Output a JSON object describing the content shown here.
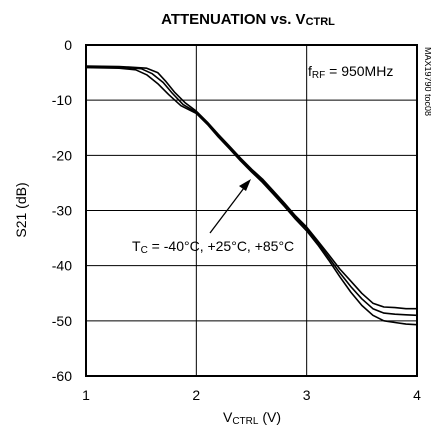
{
  "chart_data": {
    "type": "line",
    "title": {
      "main": "ATTENUATION vs. V",
      "sub": "CTRL"
    },
    "xlabel": {
      "main": "V",
      "sub": "CTRL",
      "unit": " (V)"
    },
    "ylabel": "S21 (dB)",
    "xlim": [
      1,
      4
    ],
    "ylim": [
      -60,
      0
    ],
    "xticks": [
      1,
      2,
      3,
      4
    ],
    "yticks": [
      0,
      -10,
      -20,
      -30,
      -40,
      -50,
      -60
    ],
    "xtick_labels": [
      "1",
      "2",
      "3",
      "4"
    ],
    "ytick_labels": [
      "0",
      "-10",
      "-20",
      "-30",
      "-40",
      "-50",
      "-60"
    ],
    "grid": true,
    "annotations": {
      "condition": {
        "pre": "f",
        "sub": "RF",
        "post": " = 950MHz"
      },
      "temperatures": {
        "pre": "T",
        "sub": "C",
        "post": " = -40°C, +25°C, +85°C"
      },
      "doc_code": "MAX19790 toc08"
    },
    "series": [
      {
        "x": [
          1.0,
          1.3,
          1.55,
          1.65,
          1.72,
          1.8,
          1.9,
          2.0,
          2.1,
          2.2,
          2.3,
          2.4,
          2.5,
          2.6,
          2.7,
          2.8,
          2.9,
          3.0,
          3.1,
          3.2,
          3.3,
          3.4,
          3.5,
          3.6,
          3.7,
          3.8,
          3.9,
          4.0
        ],
        "values": [
          -3.8,
          -3.9,
          -4.2,
          -5.0,
          -6.5,
          -8.5,
          -10.5,
          -12.0,
          -14.0,
          -16.2,
          -18.3,
          -20.5,
          -22.5,
          -24.3,
          -26.5,
          -28.7,
          -31.0,
          -33.0,
          -35.5,
          -38.0,
          -40.6,
          -42.8,
          -45.0,
          -46.8,
          -47.5,
          -47.6,
          -47.8,
          -47.8
        ]
      },
      {
        "x": [
          1.0,
          1.3,
          1.5,
          1.6,
          1.7,
          1.78,
          1.88,
          2.0,
          2.1,
          2.2,
          2.3,
          2.4,
          2.5,
          2.6,
          2.7,
          2.8,
          2.9,
          3.0,
          3.1,
          3.2,
          3.3,
          3.4,
          3.5,
          3.6,
          3.7,
          3.8,
          3.9,
          4.0
        ],
        "values": [
          -3.9,
          -4.0,
          -4.3,
          -5.2,
          -6.8,
          -8.7,
          -10.8,
          -12.2,
          -14.2,
          -16.5,
          -18.5,
          -20.7,
          -22.7,
          -24.6,
          -26.8,
          -29.0,
          -31.3,
          -33.3,
          -35.8,
          -38.5,
          -41.3,
          -43.8,
          -46.0,
          -47.8,
          -48.6,
          -48.8,
          -48.9,
          -49.0
        ]
      },
      {
        "x": [
          1.0,
          1.3,
          1.45,
          1.55,
          1.65,
          1.75,
          1.86,
          2.0,
          2.1,
          2.2,
          2.3,
          2.4,
          2.5,
          2.6,
          2.7,
          2.8,
          2.9,
          3.0,
          3.1,
          3.2,
          3.3,
          3.4,
          3.5,
          3.6,
          3.7,
          3.8,
          3.9,
          4.0
        ],
        "values": [
          -4.1,
          -4.2,
          -4.5,
          -5.4,
          -7.0,
          -9.0,
          -11.0,
          -12.4,
          -14.4,
          -16.7,
          -18.8,
          -21.0,
          -23.0,
          -24.9,
          -27.1,
          -29.3,
          -31.6,
          -33.7,
          -36.2,
          -39.0,
          -42.0,
          -44.8,
          -47.2,
          -49.0,
          -50.0,
          -50.3,
          -50.6,
          -50.7
        ]
      }
    ]
  }
}
